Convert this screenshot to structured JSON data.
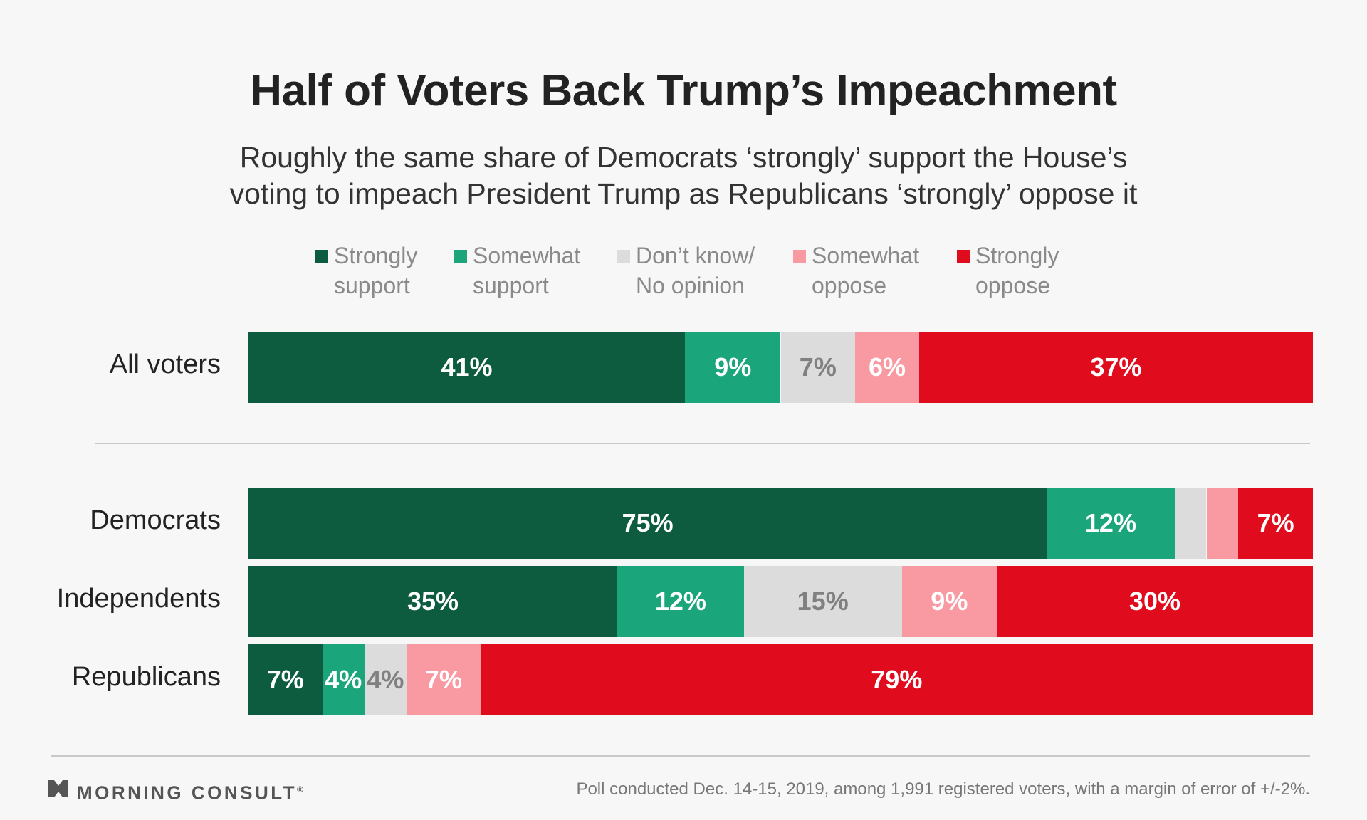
{
  "chart_data": {
    "type": "bar",
    "orientation": "horizontal",
    "stacked": true,
    "title": "Half of Voters Back Trump’s Impeachment",
    "subtitle_lines": [
      "Roughly the same share of Democrats ‘strongly’ support the House’s",
      "voting to impeach President Trump as Republicans ‘strongly’ oppose it"
    ],
    "legend_placement": "top",
    "categories": [
      "All voters",
      "Democrats",
      "Independents",
      "Republicans"
    ],
    "series": [
      {
        "name": "Strongly support",
        "legend_lines": [
          "Strongly",
          "support"
        ],
        "color": "#0d5c40",
        "label_color": "#ffffff",
        "values": [
          41,
          75,
          35,
          7
        ]
      },
      {
        "name": "Somewhat support",
        "legend_lines": [
          "Somewhat",
          "support"
        ],
        "color": "#1aa67a",
        "label_color": "#ffffff",
        "values": [
          9,
          12,
          12,
          4
        ]
      },
      {
        "name": "Don’t know/ No opinion",
        "legend_lines": [
          "Don’t know/",
          "No opinion"
        ],
        "color": "#dcdcdc",
        "label_color": "#808080",
        "values": [
          7,
          3,
          15,
          4
        ]
      },
      {
        "name": "Somewhat oppose",
        "legend_lines": [
          "Somewhat",
          "oppose"
        ],
        "color": "#f99aa3",
        "label_color": "#ffffff",
        "values": [
          6,
          3,
          9,
          7
        ]
      },
      {
        "name": "Strongly oppose",
        "legend_lines": [
          "Strongly",
          "oppose"
        ],
        "color": "#e00b1c",
        "label_color": "#ffffff",
        "values": [
          37,
          7,
          30,
          79
        ]
      }
    ],
    "data_labels": [
      [
        "41%",
        "9%",
        "7%",
        "6%",
        "37%"
      ],
      [
        "75%",
        "12%",
        "",
        "",
        "7%"
      ],
      [
        "35%",
        "12%",
        "15%",
        "9%",
        "30%"
      ],
      [
        "7%",
        "4%",
        "4%",
        "7%",
        "79%"
      ]
    ],
    "xlim": [
      0,
      100
    ],
    "grid": false
  },
  "footer": {
    "brand": "MORNING CONSULT",
    "brand_mark": "®",
    "logo_icon": "morning-consult-logo-icon",
    "note": "Poll conducted Dec. 14-15, 2019, among 1,991 registered voters, with a margin of error of +/-2%."
  }
}
